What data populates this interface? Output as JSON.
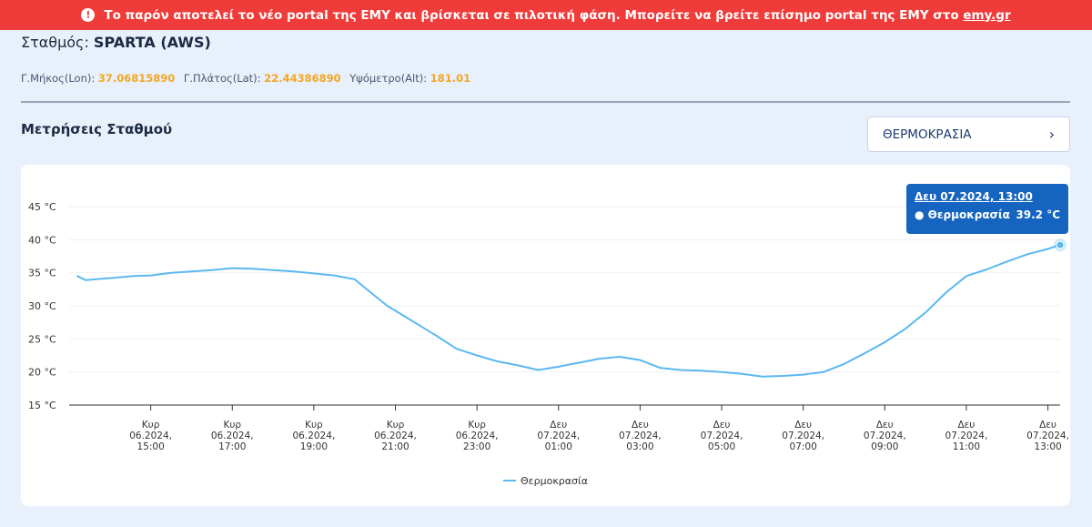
{
  "banner": {
    "icon": "exclamation-icon",
    "text": "Το παρόν αποτελεί το νέο portal της ΕΜΥ και βρίσκεται σε πιλοτική φάση. Μπορείτε να βρείτε επίσημο portal της ΕΜΥ στο",
    "link_text": "emy.gr",
    "color": "#ef3b39"
  },
  "station": {
    "label": "Σταθμός:",
    "name": "SPARTA (AWS)",
    "lon_label": "Γ.Μήκος(Lon):",
    "lon_value": "37.06815890",
    "lat_label": "Γ.Πλάτος(Lat):",
    "lat_value": "22.44386890",
    "alt_label": "Υψόμετρο(Alt):",
    "alt_value": "181.01"
  },
  "section": {
    "title": "Μετρήσεις Σταθμού",
    "selector_value": "ΘΕΡΜΟΚΡΑΣΙΑ",
    "selector_icon": "chevron-right-icon"
  },
  "tooltip": {
    "date": "Δευ 07.2024, 13:00",
    "series": "Θερμοκρασία",
    "value": "39.2 °C"
  },
  "chart_data": {
    "type": "line",
    "series_color": "#5bb8f0",
    "ylim": [
      15,
      45
    ],
    "ytick_labels": [
      "15 °C",
      "20 °C",
      "25 °C",
      "30 °C",
      "35 °C",
      "40 °C",
      "45 °C"
    ],
    "ytick_values": [
      15,
      20,
      25,
      30,
      35,
      40,
      45
    ],
    "xlim": [
      13.0,
      37.3
    ],
    "xtick_values": [
      15,
      17,
      19,
      21,
      23,
      25,
      27,
      29,
      31,
      33,
      35,
      37
    ],
    "xtick_labels": [
      [
        "Κυρ",
        "06.2024,",
        "15:00"
      ],
      [
        "Κυρ",
        "06.2024,",
        "17:00"
      ],
      [
        "Κυρ",
        "06.2024,",
        "19:00"
      ],
      [
        "Κυρ",
        "06.2024,",
        "21:00"
      ],
      [
        "Κυρ",
        "06.2024,",
        "23:00"
      ],
      [
        "Δευ",
        "07.2024,",
        "01:00"
      ],
      [
        "Δευ",
        "07.2024,",
        "03:00"
      ],
      [
        "Δευ",
        "07.2024,",
        "05:00"
      ],
      [
        "Δευ",
        "07.2024,",
        "07:00"
      ],
      [
        "Δευ",
        "07.2024,",
        "09:00"
      ],
      [
        "Δευ",
        "07.2024,",
        "11:00"
      ],
      [
        "Δευ",
        "07.2024,",
        "13:00"
      ]
    ],
    "legend": "Θερμοκρασία",
    "series": [
      {
        "name": "Θερμοκρασία",
        "x": [
          13.2,
          13.4,
          13.8,
          14.2,
          14.6,
          15.0,
          15.5,
          16.0,
          16.5,
          17.0,
          17.5,
          18.0,
          18.5,
          19.0,
          19.5,
          20.0,
          20.4,
          20.8,
          21.2,
          21.6,
          22.0,
          22.5,
          23.0,
          23.5,
          24.0,
          24.5,
          25.0,
          25.5,
          26.0,
          26.5,
          27.0,
          27.5,
          28.0,
          28.5,
          29.0,
          29.5,
          30.0,
          30.5,
          31.0,
          31.5,
          32.0,
          32.5,
          33.0,
          33.5,
          34.0,
          34.5,
          35.0,
          35.5,
          36.0,
          36.5,
          37.0,
          37.3
        ],
        "y": [
          34.5,
          33.9,
          34.1,
          34.3,
          34.5,
          34.6,
          35.0,
          35.2,
          35.4,
          35.7,
          35.6,
          35.4,
          35.2,
          34.9,
          34.6,
          34.0,
          32.0,
          30.0,
          28.5,
          27.0,
          25.5,
          23.5,
          22.5,
          21.6,
          21.0,
          20.3,
          20.8,
          21.4,
          22.0,
          22.3,
          21.8,
          20.6,
          20.3,
          20.2,
          20.0,
          19.7,
          19.3,
          19.4,
          19.6,
          20.0,
          21.2,
          22.8,
          24.5,
          26.5,
          29.0,
          32.0,
          34.5,
          35.5,
          36.7,
          37.8,
          38.6,
          39.2
        ]
      }
    ]
  }
}
